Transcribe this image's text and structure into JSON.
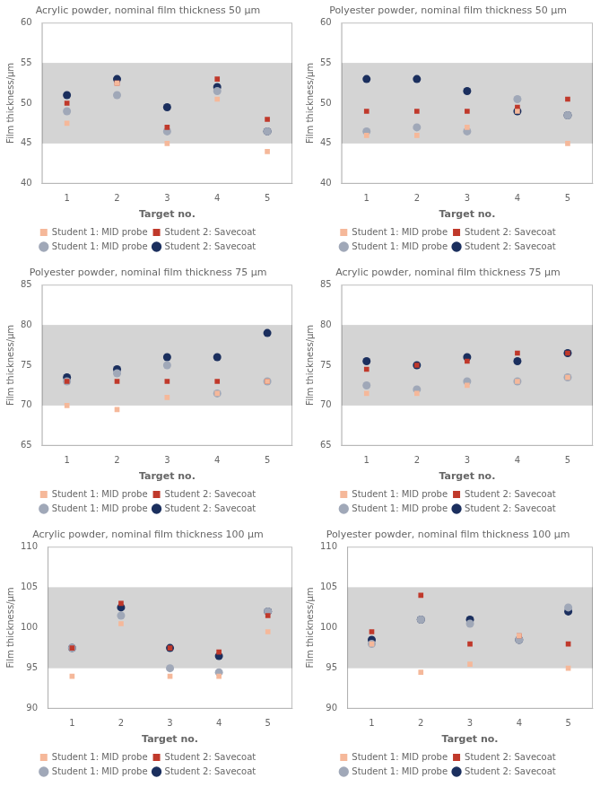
{
  "chart_data": [
    {
      "type": "scatter",
      "title": "Acrylic powder, nominal film thickness 50 μm",
      "x_label": "Target no.",
      "y_label": "Film thickness/μm",
      "x": [
        1,
        2,
        3,
        4,
        5
      ],
      "xlim": [
        0.5,
        5.5
      ],
      "xticks": [
        1,
        2,
        3,
        4,
        5
      ],
      "ylim": [
        40,
        60
      ],
      "yticks": [
        40,
        45,
        50,
        55,
        60
      ],
      "grid": false,
      "legend": "bottom",
      "band": {
        "low": 45,
        "high": 55,
        "color": "#D4D4D4"
      },
      "series": [
        {
          "name": "Student 1: MID probe",
          "color": "#F5B89A",
          "marker": "square",
          "values": [
            47.5,
            52.5,
            45.0,
            50.5,
            44.0
          ]
        },
        {
          "name": "Student 2: Savecoat",
          "color": "#C0392B",
          "marker": "square",
          "values": [
            50.0,
            52.5,
            47.0,
            53.0,
            48.0
          ]
        },
        {
          "name": "Student 1: MID probe",
          "color": "#A0A8B8",
          "marker": "circle",
          "values": [
            49.0,
            51.0,
            46.5,
            51.5,
            46.5
          ]
        },
        {
          "name": "Student 2: Savecoat",
          "color": "#1B2F5E",
          "marker": "circle",
          "values": [
            51.0,
            53.0,
            49.5,
            52.0,
            46.5
          ]
        }
      ]
    },
    {
      "type": "scatter",
      "title": "Polyester powder, nominal film thickness 50 μm",
      "x_label": "Target no.",
      "y_label": "Film thickness/μm",
      "x": [
        1,
        2,
        3,
        4,
        5
      ],
      "xlim": [
        0.5,
        5.5
      ],
      "xticks": [
        1,
        2,
        3,
        4,
        5
      ],
      "ylim": [
        40,
        60
      ],
      "yticks": [
        40,
        45,
        50,
        55,
        60
      ],
      "grid": false,
      "legend": "bottom",
      "band": {
        "low": 45,
        "high": 55,
        "color": "#D4D4D4"
      },
      "series": [
        {
          "name": "Student 1: MID probe",
          "color": "#F5B89A",
          "marker": "square",
          "values": [
            46.0,
            46.0,
            47.0,
            49.0,
            45.0
          ]
        },
        {
          "name": "Student 2: Savecoat",
          "color": "#C0392B",
          "marker": "square",
          "values": [
            49.0,
            49.0,
            49.0,
            49.5,
            50.5
          ]
        },
        {
          "name": "Student 1: MID probe",
          "color": "#A0A8B8",
          "marker": "circle",
          "values": [
            46.5,
            47.0,
            46.5,
            50.5,
            48.5
          ]
        },
        {
          "name": "Student 2: Savecoat",
          "color": "#1B2F5E",
          "marker": "circle",
          "values": [
            53.0,
            53.0,
            51.5,
            49.0,
            48.5
          ]
        }
      ]
    },
    {
      "type": "scatter",
      "title": "Polyester powder, nominal film thickness 75 μm",
      "x_label": "Target no.",
      "y_label": "Film thickness/μm",
      "x": [
        1,
        2,
        3,
        4,
        5
      ],
      "xlim": [
        0.5,
        5.5
      ],
      "xticks": [
        1,
        2,
        3,
        4,
        5
      ],
      "ylim": [
        65,
        85
      ],
      "yticks": [
        65,
        70,
        75,
        80,
        85
      ],
      "grid": false,
      "legend": "bottom",
      "band": {
        "low": 70,
        "high": 80,
        "color": "#D4D4D4"
      },
      "series": [
        {
          "name": "Student 1: MID probe",
          "color": "#F5B89A",
          "marker": "square",
          "values": [
            70.0,
            69.5,
            71.0,
            71.5,
            73.0
          ]
        },
        {
          "name": "Student 2: Savecoat",
          "color": "#C0392B",
          "marker": "square",
          "values": [
            73.0,
            73.0,
            73.0,
            73.0,
            73.0
          ]
        },
        {
          "name": "Student 1: MID probe",
          "color": "#A0A8B8",
          "marker": "circle",
          "values": [
            73.0,
            74.0,
            75.0,
            71.5,
            73.0
          ]
        },
        {
          "name": "Student 2: Savecoat",
          "color": "#1B2F5E",
          "marker": "circle",
          "values": [
            73.5,
            74.5,
            76.0,
            76.0,
            79.0
          ]
        }
      ]
    },
    {
      "type": "scatter",
      "title": "Acrylic powder, nominal film thickness 75 μm",
      "x_label": "Target no.",
      "y_label": "Film thickness/μm",
      "x": [
        1,
        2,
        3,
        4,
        5
      ],
      "xlim": [
        0.5,
        5.5
      ],
      "xticks": [
        1,
        2,
        3,
        4,
        5
      ],
      "ylim": [
        65,
        85
      ],
      "yticks": [
        65,
        70,
        75,
        80,
        85
      ],
      "grid": false,
      "legend": "bottom",
      "band": {
        "low": 70,
        "high": 80,
        "color": "#D4D4D4"
      },
      "series": [
        {
          "name": "Student 1: MID probe",
          "color": "#F5B89A",
          "marker": "square",
          "values": [
            71.5,
            71.5,
            72.5,
            73.0,
            73.5
          ]
        },
        {
          "name": "Student 2: Savecoat",
          "color": "#C0392B",
          "marker": "square",
          "values": [
            74.5,
            75.0,
            75.5,
            76.5,
            76.5
          ]
        },
        {
          "name": "Student 1: MID probe",
          "color": "#A0A8B8",
          "marker": "circle",
          "values": [
            72.5,
            72.0,
            73.0,
            73.0,
            73.5
          ]
        },
        {
          "name": "Student 2: Savecoat",
          "color": "#1B2F5E",
          "marker": "circle",
          "values": [
            75.5,
            75.0,
            76.0,
            75.5,
            76.5
          ]
        }
      ]
    },
    {
      "type": "scatter",
      "title": "Acrylic powder, nominal film thickness 100 μm",
      "x_label": "Target no.",
      "y_label": "Film thickness/μm",
      "x": [
        1,
        2,
        3,
        4,
        5
      ],
      "xlim": [
        0.5,
        5.5
      ],
      "xticks": [
        1,
        2,
        3,
        4,
        5
      ],
      "ylim": [
        90,
        110
      ],
      "yticks": [
        90,
        95,
        100,
        105,
        110
      ],
      "grid": false,
      "legend": "bottom",
      "band": {
        "low": 95,
        "high": 105,
        "color": "#D4D4D4"
      },
      "series": [
        {
          "name": "Student 1: MID probe",
          "color": "#F5B89A",
          "marker": "square",
          "values": [
            94.0,
            100.5,
            94.0,
            94.0,
            99.5
          ]
        },
        {
          "name": "Student 2: Savecoat",
          "color": "#C0392B",
          "marker": "square",
          "values": [
            97.5,
            103.0,
            97.5,
            97.0,
            101.5
          ]
        },
        {
          "name": "Student 1: MID probe",
          "color": "#A0A8B8",
          "marker": "circle",
          "values": [
            97.5,
            101.5,
            95.0,
            94.5,
            102.0
          ]
        },
        {
          "name": "Student 2: Savecoat",
          "color": "#1B2F5E",
          "marker": "circle",
          "values": [
            97.5,
            102.5,
            97.5,
            96.5,
            102.0
          ]
        }
      ]
    },
    {
      "type": "scatter",
      "title": "Polyester powder, nominal film thickness 100 μm",
      "x_label": "Target no.",
      "y_label": "Film thickness/μm",
      "x": [
        1,
        2,
        3,
        4,
        5
      ],
      "xlim": [
        0.5,
        5.5
      ],
      "xticks": [
        1,
        2,
        3,
        4,
        5
      ],
      "ylim": [
        90,
        110
      ],
      "yticks": [
        90,
        95,
        100,
        105,
        110
      ],
      "grid": false,
      "legend": "bottom",
      "band": {
        "low": 95,
        "high": 105,
        "color": "#D4D4D4"
      },
      "series": [
        {
          "name": "Student 1: MID probe",
          "color": "#F5B89A",
          "marker": "square",
          "values": [
            98.0,
            94.5,
            95.5,
            99.0,
            95.0
          ]
        },
        {
          "name": "Student 2: Savecoat",
          "color": "#C0392B",
          "marker": "square",
          "values": [
            99.5,
            104.0,
            98.0,
            99.0,
            98.0
          ]
        },
        {
          "name": "Student 1: MID probe",
          "color": "#A0A8B8",
          "marker": "circle",
          "values": [
            98.0,
            101.0,
            100.5,
            98.5,
            102.5
          ]
        },
        {
          "name": "Student 2: Savecoat",
          "color": "#1B2F5E",
          "marker": "circle",
          "values": [
            98.5,
            101.0,
            101.0,
            98.5,
            102.0
          ]
        }
      ]
    }
  ]
}
